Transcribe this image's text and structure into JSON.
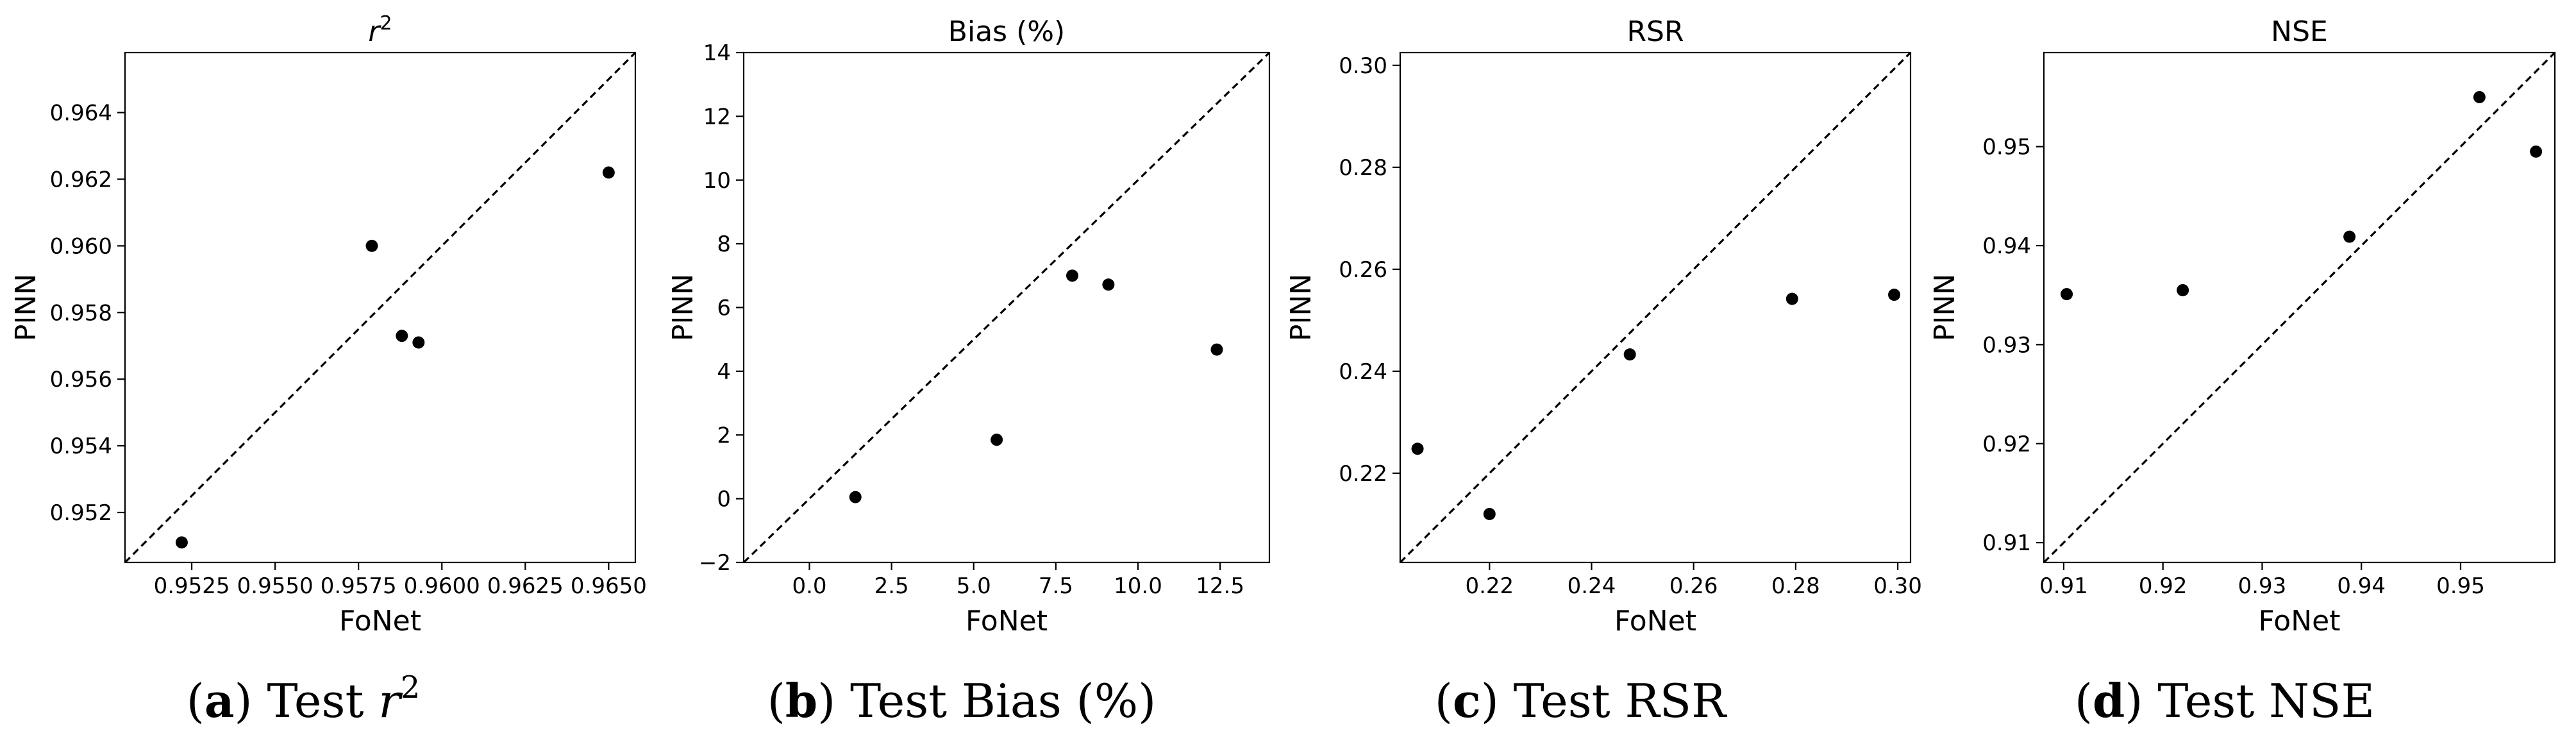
{
  "chart_data": [
    {
      "type": "scatter",
      "title": "r",
      "title_superscript": "2",
      "xlabel": "FoNet",
      "ylabel": "PINN",
      "xlim": [
        0.9505,
        0.9658
      ],
      "ylim": [
        0.9505,
        0.9658
      ],
      "xticks": [
        0.9525,
        0.955,
        0.9575,
        0.96,
        0.9625,
        0.965
      ],
      "xtick_labels": [
        "0.9525",
        "0.9550",
        "0.9575",
        "0.9600",
        "0.9625",
        "0.9650"
      ],
      "yticks": [
        0.952,
        0.954,
        0.956,
        0.958,
        0.96,
        0.962,
        0.964
      ],
      "ytick_labels": [
        "0.952",
        "0.954",
        "0.956",
        "0.958",
        "0.960",
        "0.962",
        "0.964"
      ],
      "reference_line": "y = x",
      "points": [
        {
          "x": 0.9522,
          "y": 0.9511
        },
        {
          "x": 0.9579,
          "y": 0.96
        },
        {
          "x": 0.9588,
          "y": 0.9573
        },
        {
          "x": 0.9593,
          "y": 0.9571
        },
        {
          "x": 0.965,
          "y": 0.9622
        }
      ],
      "caption": {
        "letter": "(a)",
        "text": "Test ",
        "italic": "r",
        "superscript": "2"
      }
    },
    {
      "type": "scatter",
      "title": "Bias (%)",
      "xlabel": "FoNet",
      "ylabel": "PINN",
      "xlim": [
        -2,
        14
      ],
      "ylim": [
        -2,
        14
      ],
      "xticks": [
        0,
        2.5,
        5,
        7.5,
        10,
        12.5
      ],
      "xtick_labels": [
        "0.0",
        "2.5",
        "5.0",
        "7.5",
        "10.0",
        "12.5"
      ],
      "yticks": [
        -2,
        0,
        2,
        4,
        6,
        8,
        10,
        12,
        14
      ],
      "ytick_labels": [
        "−2",
        "0",
        "2",
        "4",
        "6",
        "8",
        "10",
        "12",
        "14"
      ],
      "reference_line": "y = x",
      "points": [
        {
          "x": 1.4,
          "y": 0.05
        },
        {
          "x": 5.7,
          "y": 1.85
        },
        {
          "x": 8.0,
          "y": 7.0
        },
        {
          "x": 9.1,
          "y": 6.72
        },
        {
          "x": 12.4,
          "y": 4.68
        }
      ],
      "caption": {
        "letter": "(b)",
        "text": "Test Bias (%)"
      }
    },
    {
      "type": "scatter",
      "title": "RSR",
      "xlabel": "FoNet",
      "ylabel": "PINN",
      "xlim": [
        0.2025,
        0.3025
      ],
      "ylim": [
        0.2025,
        0.3025
      ],
      "xticks": [
        0.22,
        0.24,
        0.26,
        0.28,
        0.3
      ],
      "xtick_labels": [
        "0.22",
        "0.24",
        "0.26",
        "0.28",
        "0.30"
      ],
      "yticks": [
        0.22,
        0.24,
        0.26,
        0.28,
        0.3
      ],
      "ytick_labels": [
        "0.22",
        "0.24",
        "0.26",
        "0.28",
        "0.30"
      ],
      "reference_line": "y = x",
      "points": [
        {
          "x": 0.2059,
          "y": 0.2248
        },
        {
          "x": 0.22,
          "y": 0.212
        },
        {
          "x": 0.2475,
          "y": 0.2433
        },
        {
          "x": 0.2793,
          "y": 0.2542
        },
        {
          "x": 0.2993,
          "y": 0.255
        }
      ],
      "caption": {
        "letter": "(c)",
        "text": "Test RSR"
      }
    },
    {
      "type": "scatter",
      "title": "NSE",
      "xlabel": "FoNet",
      "ylabel": "PINN",
      "xlim": [
        0.908,
        0.9595
      ],
      "ylim": [
        0.908,
        0.9595
      ],
      "xticks": [
        0.91,
        0.92,
        0.93,
        0.94,
        0.95
      ],
      "xtick_labels": [
        "0.91",
        "0.92",
        "0.93",
        "0.94",
        "0.95"
      ],
      "yticks": [
        0.91,
        0.92,
        0.93,
        0.94,
        0.95
      ],
      "ytick_labels": [
        "0.91",
        "0.92",
        "0.93",
        "0.94",
        "0.95"
      ],
      "reference_line": "y = x",
      "points": [
        {
          "x": 0.9103,
          "y": 0.9351
        },
        {
          "x": 0.922,
          "y": 0.9355
        },
        {
          "x": 0.9388,
          "y": 0.9409
        },
        {
          "x": 0.9519,
          "y": 0.955
        },
        {
          "x": 0.9576,
          "y": 0.9495
        }
      ],
      "caption": {
        "letter": "(d)",
        "text": "Test NSE"
      }
    }
  ],
  "style": {
    "point_color": "#000000",
    "reference_line_color": "#000000",
    "axes_color": "#000000"
  }
}
